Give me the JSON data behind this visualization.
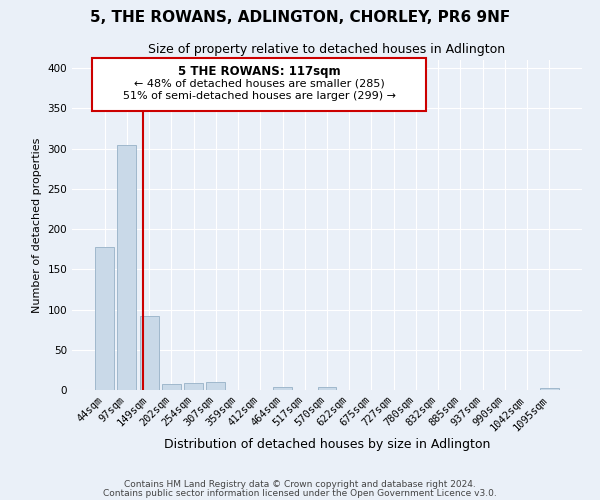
{
  "title": "5, THE ROWANS, ADLINGTON, CHORLEY, PR6 9NF",
  "subtitle": "Size of property relative to detached houses in Adlington",
  "xlabel": "Distribution of detached houses by size in Adlington",
  "ylabel": "Number of detached properties",
  "bar_labels": [
    "44sqm",
    "97sqm",
    "149sqm",
    "202sqm",
    "254sqm",
    "307sqm",
    "359sqm",
    "412sqm",
    "464sqm",
    "517sqm",
    "570sqm",
    "622sqm",
    "675sqm",
    "727sqm",
    "780sqm",
    "832sqm",
    "885sqm",
    "937sqm",
    "990sqm",
    "1042sqm",
    "1095sqm"
  ],
  "bar_heights": [
    178,
    305,
    92,
    8,
    9,
    10,
    0,
    0,
    4,
    0,
    4,
    0,
    0,
    0,
    0,
    0,
    0,
    0,
    0,
    0,
    2
  ],
  "bar_color": "#c9d9e8",
  "bar_edgecolor": "#a0b8cc",
  "vline_x": 1.72,
  "vline_color": "#cc0000",
  "annotation_title": "5 THE ROWANS: 117sqm",
  "annotation_line1": "← 48% of detached houses are smaller (285)",
  "annotation_line2": "51% of semi-detached houses are larger (299) →",
  "box_color": "#cc0000",
  "ylim": [
    0,
    410
  ],
  "yticks": [
    0,
    50,
    100,
    150,
    200,
    250,
    300,
    350,
    400
  ],
  "footer1": "Contains HM Land Registry data © Crown copyright and database right 2024.",
  "footer2": "Contains public sector information licensed under the Open Government Licence v3.0.",
  "bg_color": "#eaf0f8",
  "plot_bg_color": "#eaf0f8",
  "title_fontsize": 11,
  "subtitle_fontsize": 9,
  "xlabel_fontsize": 9,
  "ylabel_fontsize": 8,
  "tick_fontsize": 7.5,
  "footer_fontsize": 6.5
}
